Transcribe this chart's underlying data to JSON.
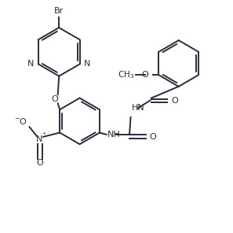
{
  "bg_color": "#ffffff",
  "line_color": "#2b2b3b",
  "lw": 1.4,
  "fs": 8.0,
  "figsize": [
    2.97,
    2.96
  ],
  "dpi": 100,
  "xlim": [
    0,
    10
  ],
  "ylim": [
    0,
    10
  ]
}
